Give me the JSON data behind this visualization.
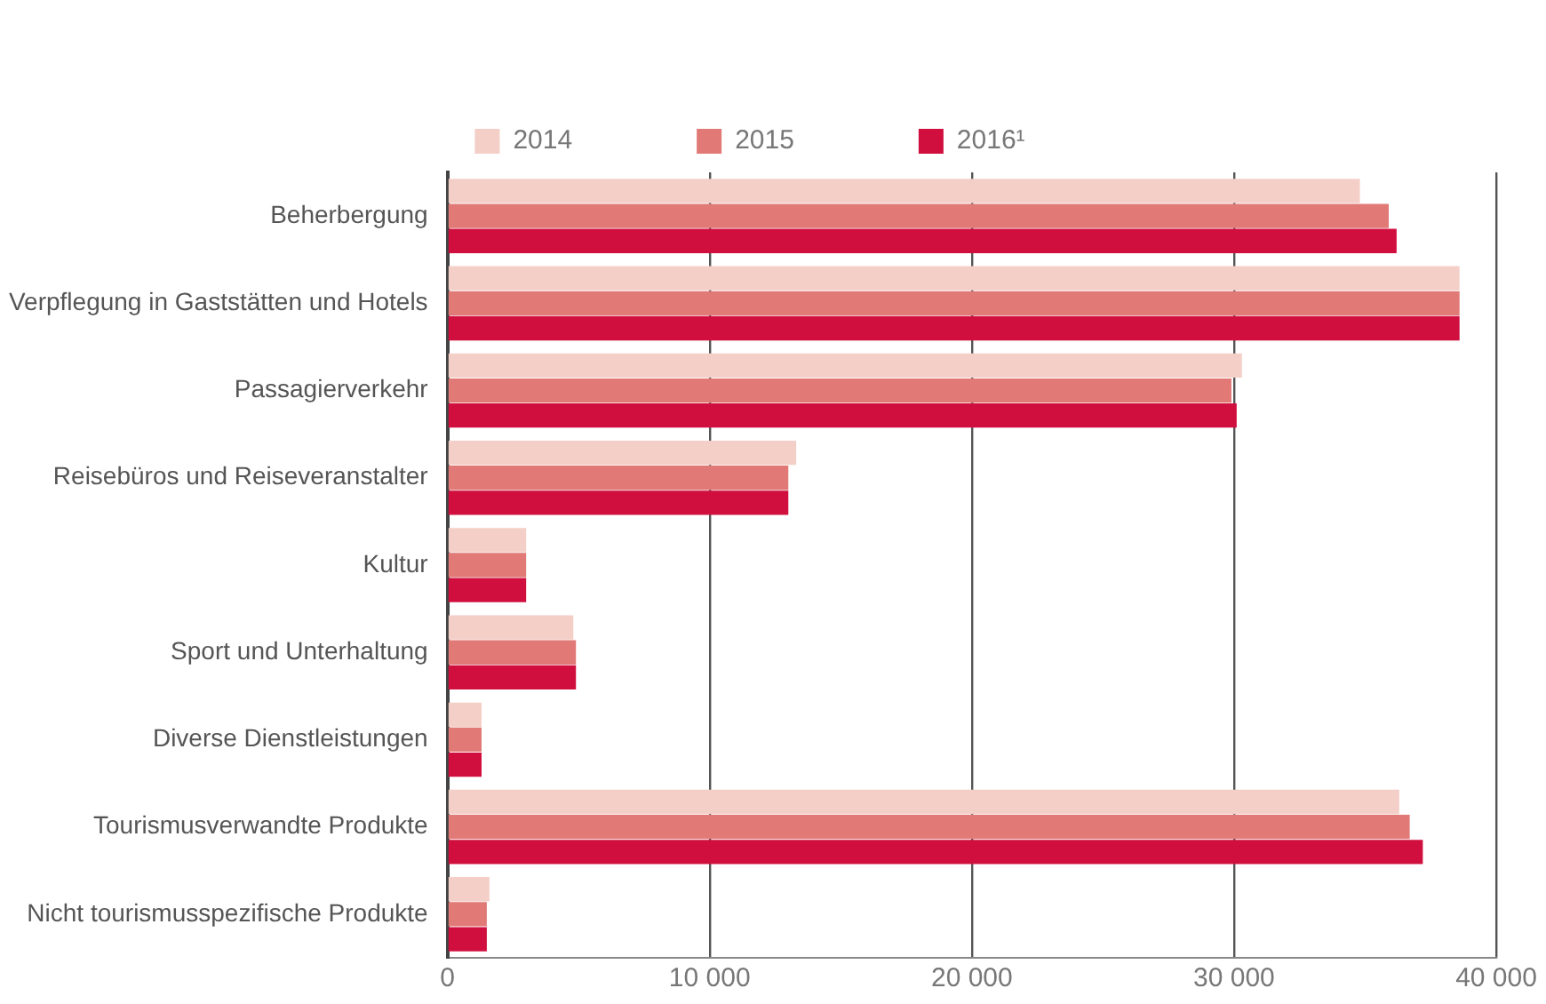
{
  "chart_data": {
    "type": "bar",
    "orientation": "horizontal",
    "categories": [
      "Beherbergung",
      "Verpflegung in Gaststätten und Hotels",
      "Passagierverkehr",
      "Reisebüros und Reiseveranstalter",
      "Kultur",
      "Sport und Unterhaltung",
      "Diverse Dienstleistungen",
      "Tourismusverwandte Produkte",
      "Nicht tourismusspezifische Produkte"
    ],
    "series": [
      {
        "name": "2014",
        "color": "#f4cfc8",
        "values": [
          34800,
          38600,
          30300,
          13300,
          3000,
          4800,
          1300,
          36300,
          1600
        ]
      },
      {
        "name": "2015",
        "color": "#e17a76",
        "values": [
          35900,
          38600,
          29900,
          13000,
          3000,
          4900,
          1300,
          36700,
          1500
        ]
      },
      {
        "name": "2016¹",
        "color": "#d00f3f",
        "values": [
          36200,
          38600,
          30100,
          13000,
          3000,
          4900,
          1300,
          37200,
          1500
        ]
      }
    ],
    "xlim": [
      0,
      40000
    ],
    "xticks": [
      0,
      {
        "value": 10000,
        "label": "10 000"
      },
      {
        "value": 20000,
        "label": "20 000"
      },
      {
        "value": 30000,
        "label": "30 000"
      },
      {
        "value": 40000,
        "label": "40 000"
      }
    ],
    "grid": "x",
    "legend": "top"
  }
}
